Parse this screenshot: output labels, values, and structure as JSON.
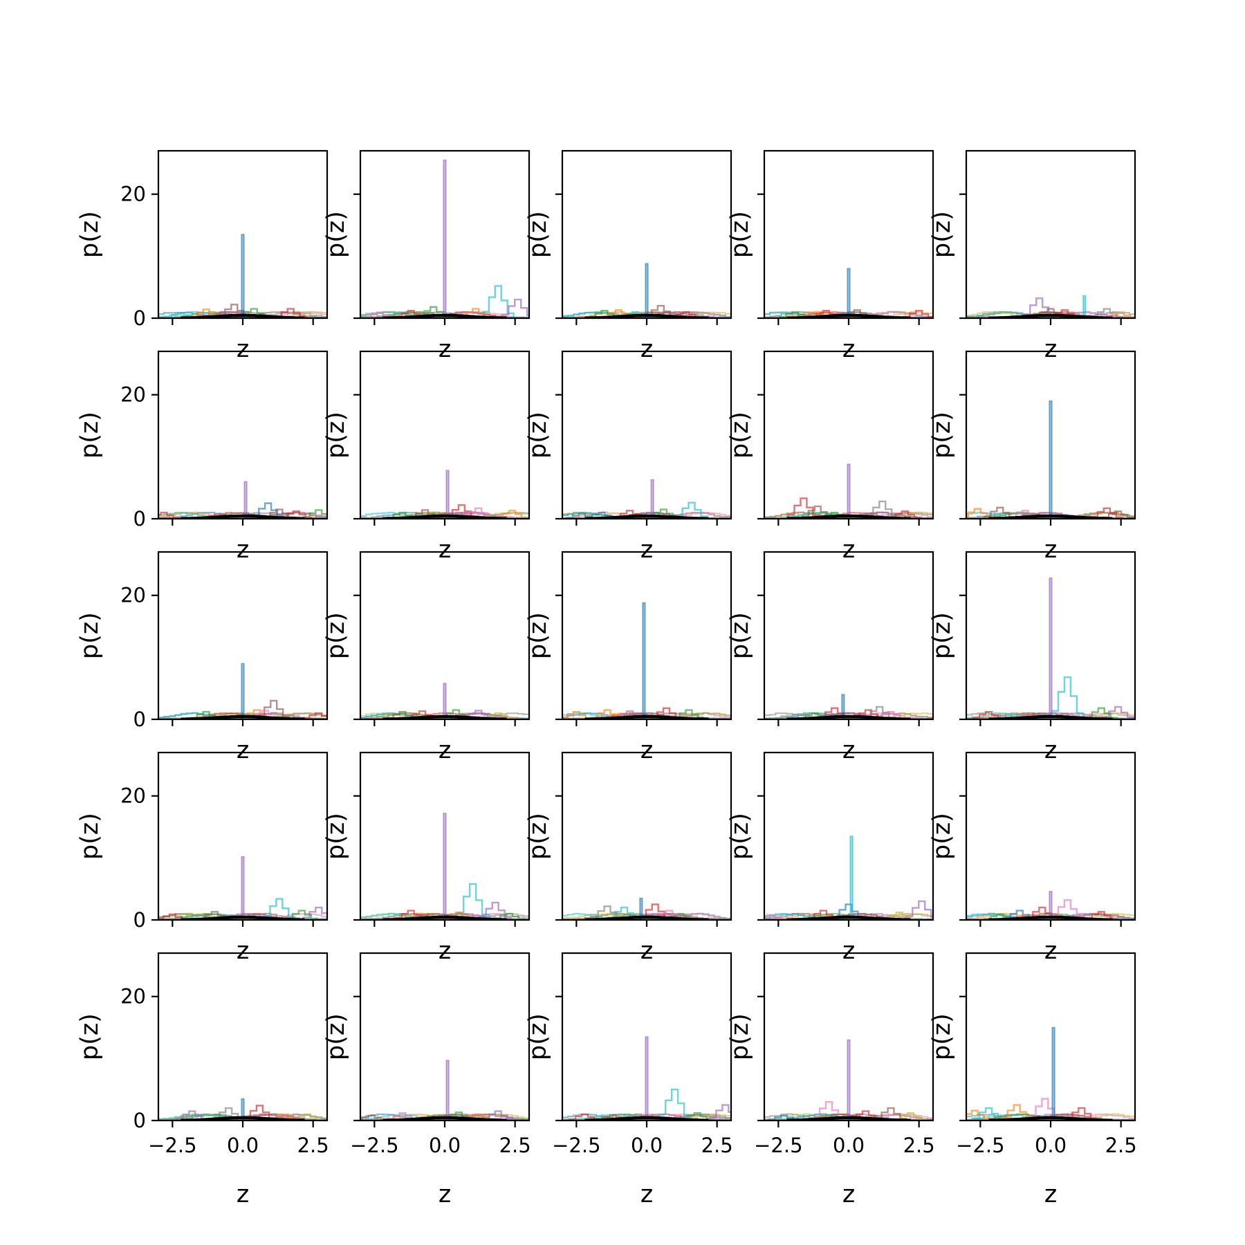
{
  "chart_data": {
    "type": "line",
    "layout": {
      "rows": 5,
      "cols": 5,
      "sharex": true,
      "sharey": true
    },
    "xlabel": "z",
    "ylabel": "p(z)",
    "xlim": [
      -3.0,
      3.0
    ],
    "ylim": [
      0,
      27
    ],
    "xticks": [
      -2.5,
      0.0,
      2.5
    ],
    "xtick_labels": [
      "−2.5",
      "0.0",
      "2.5"
    ],
    "yticks": [
      0,
      20
    ],
    "ytick_labels": [
      "0",
      "20"
    ],
    "series_colors": [
      "#1f77b4",
      "#ff7f0e",
      "#2ca02c",
      "#d62728",
      "#9467bd",
      "#8c564b",
      "#e377c2",
      "#7f7f7f",
      "#bcbd22",
      "#17becf"
    ],
    "reference_color": "#000000",
    "panels": [
      {
        "row": 0,
        "col": 0,
        "spike": {
          "x": 0.0,
          "height": 13.5,
          "color": "#1f77b4"
        },
        "bumps": [
          {
            "x": -2.2,
            "height": 0.8,
            "color": "#17becf"
          },
          {
            "x": -1.3,
            "height": 1.4,
            "color": "#ff7f0e"
          },
          {
            "x": -0.3,
            "height": 2.2,
            "color": "#8c564b"
          },
          {
            "x": 0.4,
            "height": 1.5,
            "color": "#2ca02c"
          },
          {
            "x": 1.7,
            "height": 1.5,
            "color": "#d62728"
          },
          {
            "x": -0.6,
            "height": 1.0,
            "color": "#9467bd"
          }
        ]
      },
      {
        "row": 0,
        "col": 1,
        "spike": {
          "x": 0.0,
          "height": 25.5,
          "color": "#9467bd"
        },
        "bumps": [
          {
            "x": -2.3,
            "height": 0.9,
            "color": "#e377c2"
          },
          {
            "x": -1.2,
            "height": 1.2,
            "color": "#d62728"
          },
          {
            "x": -0.4,
            "height": 1.8,
            "color": "#2ca02c"
          },
          {
            "x": 1.9,
            "height": 5.2,
            "color": "#17becf"
          },
          {
            "x": 2.6,
            "height": 3.0,
            "color": "#9467bd"
          },
          {
            "x": 1.1,
            "height": 1.5,
            "color": "#ff7f0e"
          }
        ]
      },
      {
        "row": 0,
        "col": 2,
        "spike": {
          "x": 0.0,
          "height": 8.8,
          "color": "#1f77b4"
        },
        "bumps": [
          {
            "x": -1.5,
            "height": 1.2,
            "color": "#2ca02c"
          },
          {
            "x": -1.0,
            "height": 1.3,
            "color": "#ff7f0e"
          },
          {
            "x": 0.5,
            "height": 2.0,
            "color": "#8c564b"
          },
          {
            "x": 1.4,
            "height": 1.0,
            "color": "#d62728"
          },
          {
            "x": -0.4,
            "height": 1.0,
            "color": "#17becf"
          }
        ]
      },
      {
        "row": 0,
        "col": 3,
        "spike": {
          "x": 0.0,
          "height": 8.0,
          "color": "#1f77b4"
        },
        "bumps": [
          {
            "x": -1.9,
            "height": 1.0,
            "color": "#2ca02c"
          },
          {
            "x": -0.8,
            "height": 1.2,
            "color": "#d62728"
          },
          {
            "x": 0.3,
            "height": 1.3,
            "color": "#8c564b"
          },
          {
            "x": 2.5,
            "height": 1.2,
            "color": "#d62728"
          },
          {
            "x": -1.2,
            "height": 0.9,
            "color": "#ff7f0e"
          }
        ]
      },
      {
        "row": 0,
        "col": 4,
        "spike": {
          "x": 1.2,
          "height": 3.6,
          "color": "#17becf"
        },
        "bumps": [
          {
            "x": -0.4,
            "height": 3.2,
            "color": "#9467bd"
          },
          {
            "x": 0.0,
            "height": 1.5,
            "color": "#8c564b"
          },
          {
            "x": 2.0,
            "height": 1.5,
            "color": "#7f7f7f"
          },
          {
            "x": 0.5,
            "height": 1.3,
            "color": "#d62728"
          },
          {
            "x": 2.5,
            "height": 0.8,
            "color": "#ff7f0e"
          }
        ]
      },
      {
        "row": 1,
        "col": 0,
        "spike": {
          "x": 0.1,
          "height": 6.0,
          "color": "#9467bd"
        },
        "bumps": [
          {
            "x": -2.8,
            "height": 1.0,
            "color": "#d62728"
          },
          {
            "x": 0.9,
            "height": 2.5,
            "color": "#1f77b4"
          },
          {
            "x": 1.3,
            "height": 1.5,
            "color": "#8c564b"
          },
          {
            "x": 2.7,
            "height": 1.4,
            "color": "#2ca02c"
          },
          {
            "x": 1.9,
            "height": 1.2,
            "color": "#d62728"
          }
        ]
      },
      {
        "row": 1,
        "col": 1,
        "spike": {
          "x": 0.1,
          "height": 7.8,
          "color": "#9467bd"
        },
        "bumps": [
          {
            "x": -0.7,
            "height": 1.4,
            "color": "#8c564b"
          },
          {
            "x": 0.6,
            "height": 2.2,
            "color": "#d62728"
          },
          {
            "x": 1.2,
            "height": 1.7,
            "color": "#e377c2"
          },
          {
            "x": 2.4,
            "height": 1.3,
            "color": "#ff7f0e"
          },
          {
            "x": -1.5,
            "height": 1.0,
            "color": "#2ca02c"
          }
        ]
      },
      {
        "row": 1,
        "col": 2,
        "spike": {
          "x": 0.2,
          "height": 6.3,
          "color": "#9467bd"
        },
        "bumps": [
          {
            "x": -1.6,
            "height": 1.0,
            "color": "#1f77b4"
          },
          {
            "x": -0.6,
            "height": 1.3,
            "color": "#d62728"
          },
          {
            "x": 0.6,
            "height": 1.5,
            "color": "#2ca02c"
          },
          {
            "x": 1.6,
            "height": 2.6,
            "color": "#17becf"
          },
          {
            "x": -2.3,
            "height": 0.8,
            "color": "#1f77b4"
          }
        ]
      },
      {
        "row": 1,
        "col": 3,
        "spike": {
          "x": 0.0,
          "height": 8.8,
          "color": "#9467bd"
        },
        "bumps": [
          {
            "x": -1.6,
            "height": 3.3,
            "color": "#d62728"
          },
          {
            "x": -1.1,
            "height": 2.0,
            "color": "#8c564b"
          },
          {
            "x": 1.2,
            "height": 2.8,
            "color": "#7f7f7f"
          },
          {
            "x": 2.0,
            "height": 1.2,
            "color": "#d62728"
          },
          {
            "x": -0.5,
            "height": 1.0,
            "color": "#2ca02c"
          }
        ]
      },
      {
        "row": 1,
        "col": 4,
        "spike": {
          "x": 0.0,
          "height": 19.0,
          "color": "#1f77b4"
        },
        "bumps": [
          {
            "x": -2.6,
            "height": 1.6,
            "color": "#ff7f0e"
          },
          {
            "x": -1.8,
            "height": 1.8,
            "color": "#8c564b"
          },
          {
            "x": -0.9,
            "height": 1.3,
            "color": "#e377c2"
          },
          {
            "x": 2.0,
            "height": 1.7,
            "color": "#d62728"
          },
          {
            "x": 2.4,
            "height": 1.2,
            "color": "#8c564b"
          }
        ]
      },
      {
        "row": 2,
        "col": 0,
        "spike": {
          "x": 0.0,
          "height": 9.0,
          "color": "#1f77b4"
        },
        "bumps": [
          {
            "x": -1.3,
            "height": 1.2,
            "color": "#2ca02c"
          },
          {
            "x": 0.5,
            "height": 1.5,
            "color": "#ff7f0e"
          },
          {
            "x": 1.1,
            "height": 3.0,
            "color": "#8c564b"
          },
          {
            "x": 2.7,
            "height": 1.0,
            "color": "#d62728"
          },
          {
            "x": 0.8,
            "height": 1.4,
            "color": "#e377c2"
          }
        ]
      },
      {
        "row": 2,
        "col": 1,
        "spike": {
          "x": 0.0,
          "height": 5.8,
          "color": "#9467bd"
        },
        "bumps": [
          {
            "x": -1.5,
            "height": 1.2,
            "color": "#8c564b"
          },
          {
            "x": -0.8,
            "height": 1.3,
            "color": "#d62728"
          },
          {
            "x": 0.4,
            "height": 1.5,
            "color": "#2ca02c"
          },
          {
            "x": 1.2,
            "height": 1.4,
            "color": "#9467bd"
          },
          {
            "x": 1.9,
            "height": 1.0,
            "color": "#bcbd22"
          }
        ]
      },
      {
        "row": 2,
        "col": 2,
        "spike": {
          "x": -0.1,
          "height": 18.8,
          "color": "#1f77b4"
        },
        "bumps": [
          {
            "x": -2.5,
            "height": 1.2,
            "color": "#ff7f0e"
          },
          {
            "x": -1.4,
            "height": 1.5,
            "color": "#ff7f0e"
          },
          {
            "x": -0.6,
            "height": 1.3,
            "color": "#9467bd"
          },
          {
            "x": 0.7,
            "height": 1.8,
            "color": "#d62728"
          },
          {
            "x": 1.5,
            "height": 1.5,
            "color": "#2ca02c"
          }
        ]
      },
      {
        "row": 2,
        "col": 3,
        "spike": {
          "x": -0.2,
          "height": 4.0,
          "color": "#1f77b4"
        },
        "bumps": [
          {
            "x": -0.5,
            "height": 1.8,
            "color": "#d62728"
          },
          {
            "x": 0.7,
            "height": 1.5,
            "color": "#d62728"
          },
          {
            "x": 1.1,
            "height": 2.0,
            "color": "#7f7f7f"
          },
          {
            "x": 1.5,
            "height": 1.2,
            "color": "#e377c2"
          },
          {
            "x": -1.2,
            "height": 1.0,
            "color": "#2ca02c"
          }
        ]
      },
      {
        "row": 2,
        "col": 4,
        "spike": {
          "x": 0.0,
          "height": 22.8,
          "color": "#9467bd"
        },
        "bumps": [
          {
            "x": -2.2,
            "height": 1.2,
            "color": "#d62728"
          },
          {
            "x": 0.6,
            "height": 6.8,
            "color": "#17becf"
          },
          {
            "x": 1.8,
            "height": 1.8,
            "color": "#2ca02c"
          },
          {
            "x": 2.4,
            "height": 2.0,
            "color": "#9467bd"
          },
          {
            "x": -0.8,
            "height": 1.0,
            "color": "#e377c2"
          }
        ]
      },
      {
        "row": 3,
        "col": 0,
        "spike": {
          "x": 0.0,
          "height": 10.2,
          "color": "#9467bd"
        },
        "bumps": [
          {
            "x": -2.5,
            "height": 0.9,
            "color": "#d62728"
          },
          {
            "x": -1.0,
            "height": 1.3,
            "color": "#8c564b"
          },
          {
            "x": 1.3,
            "height": 3.4,
            "color": "#17becf"
          },
          {
            "x": 2.1,
            "height": 1.5,
            "color": "#2ca02c"
          },
          {
            "x": 2.7,
            "height": 2.0,
            "color": "#9467bd"
          }
        ]
      },
      {
        "row": 3,
        "col": 1,
        "spike": {
          "x": 0.0,
          "height": 17.2,
          "color": "#9467bd"
        },
        "bumps": [
          {
            "x": -1.2,
            "height": 1.5,
            "color": "#d62728"
          },
          {
            "x": 1.0,
            "height": 5.8,
            "color": "#17becf"
          },
          {
            "x": 1.8,
            "height": 2.8,
            "color": "#9467bd"
          },
          {
            "x": 2.3,
            "height": 1.0,
            "color": "#2ca02c"
          },
          {
            "x": 0.5,
            "height": 1.2,
            "color": "#ff7f0e"
          }
        ]
      },
      {
        "row": 3,
        "col": 2,
        "spike": {
          "x": -0.2,
          "height": 3.5,
          "color": "#1f77b4"
        },
        "bumps": [
          {
            "x": -1.4,
            "height": 2.2,
            "color": "#7f7f7f"
          },
          {
            "x": -0.8,
            "height": 2.0,
            "color": "#17becf"
          },
          {
            "x": 0.3,
            "height": 2.5,
            "color": "#d62728"
          },
          {
            "x": 1.2,
            "height": 1.0,
            "color": "#2ca02c"
          },
          {
            "x": 0.8,
            "height": 1.5,
            "color": "#e377c2"
          }
        ]
      },
      {
        "row": 3,
        "col": 3,
        "spike": {
          "x": 0.1,
          "height": 13.5,
          "color": "#17becf"
        },
        "bumps": [
          {
            "x": -2.8,
            "height": 0.8,
            "color": "#e377c2"
          },
          {
            "x": -0.9,
            "height": 1.5,
            "color": "#d62728"
          },
          {
            "x": 0.0,
            "height": 2.5,
            "color": "#1f77b4"
          },
          {
            "x": 2.6,
            "height": 3.0,
            "color": "#9467bd"
          },
          {
            "x": 1.8,
            "height": 1.2,
            "color": "#bcbd22"
          }
        ]
      },
      {
        "row": 3,
        "col": 4,
        "spike": {
          "x": 0.0,
          "height": 4.6,
          "color": "#9467bd"
        },
        "bumps": [
          {
            "x": -1.1,
            "height": 1.5,
            "color": "#1f77b4"
          },
          {
            "x": -0.3,
            "height": 2.0,
            "color": "#d62728"
          },
          {
            "x": 0.6,
            "height": 3.2,
            "color": "#e377c2"
          },
          {
            "x": 1.8,
            "height": 1.3,
            "color": "#d62728"
          },
          {
            "x": -1.8,
            "height": 0.9,
            "color": "#2ca02c"
          }
        ]
      },
      {
        "row": 4,
        "col": 0,
        "spike": {
          "x": 0.0,
          "height": 3.5,
          "color": "#1f77b4"
        },
        "bumps": [
          {
            "x": -1.8,
            "height": 1.5,
            "color": "#9467bd"
          },
          {
            "x": -0.5,
            "height": 2.0,
            "color": "#7f7f7f"
          },
          {
            "x": 0.6,
            "height": 2.4,
            "color": "#d62728"
          },
          {
            "x": 1.5,
            "height": 1.0,
            "color": "#ff7f0e"
          },
          {
            "x": 2.3,
            "height": 1.0,
            "color": "#bcbd22"
          }
        ]
      },
      {
        "row": 4,
        "col": 1,
        "spike": {
          "x": 0.1,
          "height": 9.7,
          "color": "#9467bd"
        },
        "bumps": [
          {
            "x": -2.6,
            "height": 0.8,
            "color": "#8c564b"
          },
          {
            "x": -1.5,
            "height": 1.2,
            "color": "#e377c2"
          },
          {
            "x": 0.5,
            "height": 1.3,
            "color": "#2ca02c"
          },
          {
            "x": 1.9,
            "height": 1.5,
            "color": "#9467bd"
          },
          {
            "x": 1.2,
            "height": 1.0,
            "color": "#ff7f0e"
          }
        ]
      },
      {
        "row": 4,
        "col": 2,
        "spike": {
          "x": 0.0,
          "height": 13.5,
          "color": "#9467bd"
        },
        "bumps": [
          {
            "x": -2.2,
            "height": 1.0,
            "color": "#d62728"
          },
          {
            "x": 1.0,
            "height": 5.0,
            "color": "#17becf"
          },
          {
            "x": 2.8,
            "height": 2.5,
            "color": "#9467bd"
          },
          {
            "x": 1.8,
            "height": 1.2,
            "color": "#2ca02c"
          },
          {
            "x": -1.2,
            "height": 0.9,
            "color": "#8c564b"
          }
        ]
      },
      {
        "row": 4,
        "col": 3,
        "spike": {
          "x": 0.0,
          "height": 13.0,
          "color": "#9467bd"
        },
        "bumps": [
          {
            "x": -0.7,
            "height": 3.0,
            "color": "#e377c2"
          },
          {
            "x": 1.5,
            "height": 2.0,
            "color": "#8c564b"
          },
          {
            "x": -2.3,
            "height": 0.8,
            "color": "#1f77b4"
          },
          {
            "x": 0.6,
            "height": 1.5,
            "color": "#d62728"
          },
          {
            "x": 2.2,
            "height": 1.2,
            "color": "#bcbd22"
          }
        ]
      },
      {
        "row": 4,
        "col": 4,
        "spike": {
          "x": 0.1,
          "height": 15.0,
          "color": "#1f77b4"
        },
        "bumps": [
          {
            "x": -2.7,
            "height": 1.6,
            "color": "#ff7f0e"
          },
          {
            "x": -2.2,
            "height": 2.0,
            "color": "#17becf"
          },
          {
            "x": -1.2,
            "height": 2.5,
            "color": "#ff7f0e"
          },
          {
            "x": -0.2,
            "height": 3.5,
            "color": "#e377c2"
          },
          {
            "x": 1.1,
            "height": 2.0,
            "color": "#d62728"
          }
        ]
      }
    ]
  }
}
